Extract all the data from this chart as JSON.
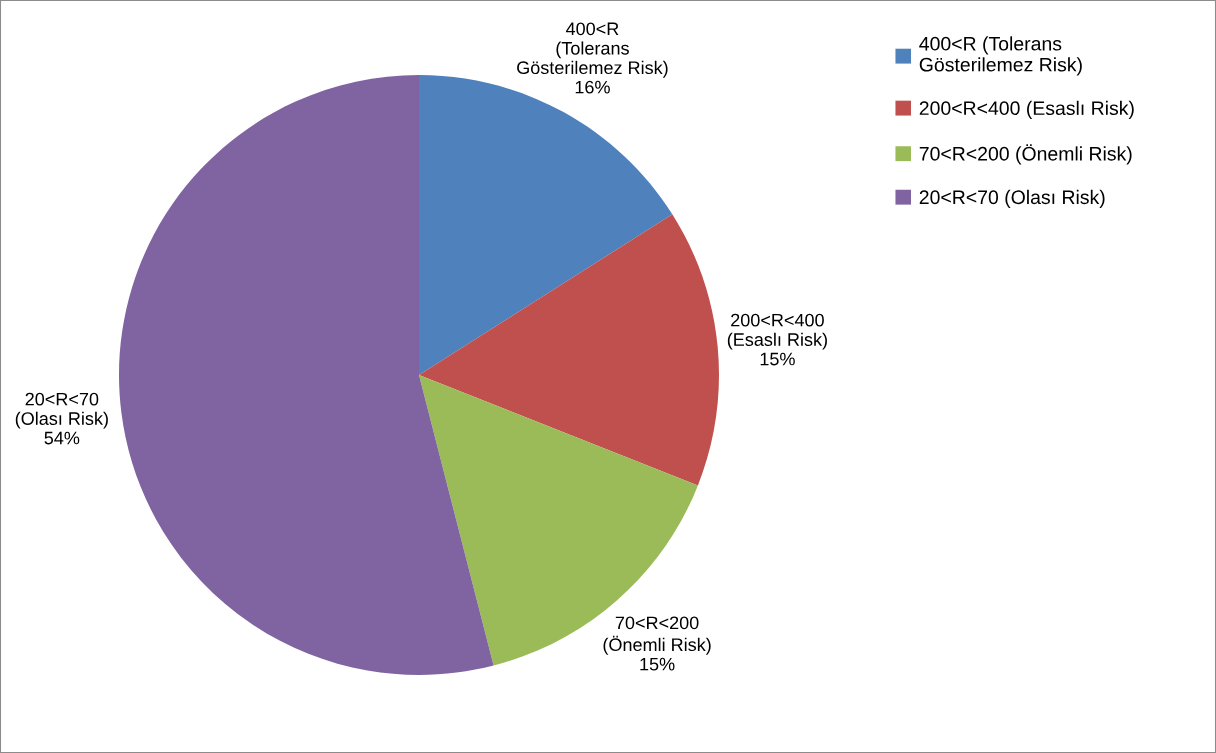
{
  "chart_data": {
    "type": "pie",
    "categories": [
      "400<R (Tolerans\nGösterilemez Risk)",
      "200<R<400 (Esaslı Risk)",
      "70<R<200 (Önemli Risk)",
      "20<R<70 (Olası Risk)"
    ],
    "values": [
      16,
      15,
      15,
      54
    ],
    "colors": [
      "#4f81bd",
      "#c0504d",
      "#9bbb59",
      "#8064a2"
    ],
    "value_labels": [
      "400<R\n(Tolerans\nGösterilemez Risk)\n16%",
      "200<R<400\n(Esaslı Risk)\n15%",
      "70<R<200\n(Önemli Risk)\n15%",
      "20<R<70\n(Olası Risk)\n54%"
    ],
    "legend": "right"
  }
}
